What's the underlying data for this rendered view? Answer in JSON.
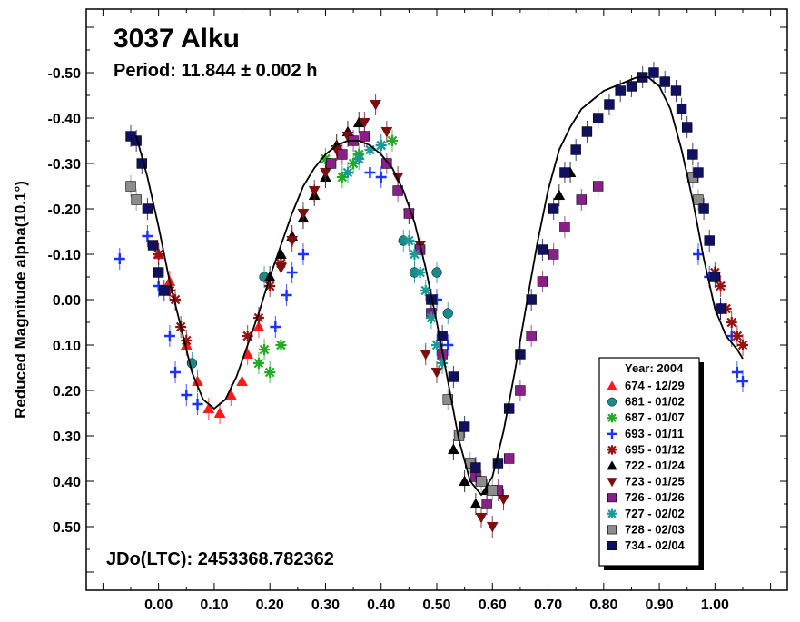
{
  "chart_data": {
    "type": "scatter",
    "title": "3037 Alku",
    "subtitle": "Period: 11.844 ± 0.002 h",
    "epoch_label": "JDo(LTC): 2453368.782362",
    "xlabel": "",
    "ylabel": "Reduced Magnitude alpha(10.1°)",
    "xlim": [
      -0.13,
      1.13
    ],
    "ylim": [
      -0.64,
      0.64
    ],
    "y_inverted": true,
    "x_ticks": [
      {
        "value": 0.0,
        "label": "0.00"
      },
      {
        "value": 0.1,
        "label": "0.10"
      },
      {
        "value": 0.2,
        "label": "0.20"
      },
      {
        "value": 0.3,
        "label": "0.30"
      },
      {
        "value": 0.4,
        "label": "0.40"
      },
      {
        "value": 0.5,
        "label": "0.50"
      },
      {
        "value": 0.6,
        "label": "0.60"
      },
      {
        "value": 0.7,
        "label": "0.70"
      },
      {
        "value": 0.8,
        "label": "0.80"
      },
      {
        "value": 0.9,
        "label": "0.90"
      },
      {
        "value": 1.0,
        "label": "1.00"
      }
    ],
    "y_ticks": [
      {
        "value": -0.5,
        "label": "-0.50"
      },
      {
        "value": -0.4,
        "label": "-0.40"
      },
      {
        "value": -0.3,
        "label": "-0.30"
      },
      {
        "value": -0.2,
        "label": "-0.20"
      },
      {
        "value": -0.1,
        "label": "-0.10"
      },
      {
        "value": 0.0,
        "label": "0.00"
      },
      {
        "value": 0.1,
        "label": "0.10"
      },
      {
        "value": 0.2,
        "label": "0.20"
      },
      {
        "value": 0.3,
        "label": "0.30"
      },
      {
        "value": 0.4,
        "label": "0.40"
      },
      {
        "value": 0.5,
        "label": "0.50"
      }
    ],
    "grid": false,
    "legend": {
      "placement": "bottom-right",
      "title": "Year: 2004",
      "entries": [
        {
          "label": "674 - 12/29",
          "marker": "triangle-up",
          "color": "#ff1a1a"
        },
        {
          "label": "681 - 01/02",
          "marker": "circle",
          "color": "#1a8a8a"
        },
        {
          "label": "687 - 01/07",
          "marker": "asterisk",
          "color": "#22aa22"
        },
        {
          "label": "693 - 01/11",
          "marker": "plus",
          "color": "#1a33ff"
        },
        {
          "label": "695 - 01/12",
          "marker": "asterisk",
          "color": "#991111"
        },
        {
          "label": "722 - 01/24",
          "marker": "triangle-up",
          "color": "#000000"
        },
        {
          "label": "723 - 01/25",
          "marker": "triangle-down",
          "color": "#7a0f0f"
        },
        {
          "label": "726 - 01/26",
          "marker": "square",
          "color": "#8a1f8a"
        },
        {
          "label": "727 - 02/02",
          "marker": "asterisk",
          "color": "#1a9999"
        },
        {
          "label": "728 - 02/03",
          "marker": "square",
          "color": "#8c8c8c"
        },
        {
          "label": "734 - 02/04",
          "marker": "square",
          "color": "#101060"
        }
      ]
    },
    "fit_curve": [
      [
        -0.04,
        -0.36
      ],
      [
        -0.02,
        -0.27
      ],
      [
        0.0,
        -0.16
      ],
      [
        0.02,
        -0.04
      ],
      [
        0.04,
        0.06
      ],
      [
        0.06,
        0.16
      ],
      [
        0.08,
        0.22
      ],
      [
        0.1,
        0.24
      ],
      [
        0.12,
        0.22
      ],
      [
        0.14,
        0.17
      ],
      [
        0.16,
        0.1
      ],
      [
        0.18,
        0.03
      ],
      [
        0.2,
        -0.05
      ],
      [
        0.22,
        -0.12
      ],
      [
        0.24,
        -0.19
      ],
      [
        0.26,
        -0.25
      ],
      [
        0.28,
        -0.29
      ],
      [
        0.3,
        -0.32
      ],
      [
        0.32,
        -0.34
      ],
      [
        0.34,
        -0.35
      ],
      [
        0.36,
        -0.35
      ],
      [
        0.38,
        -0.34
      ],
      [
        0.4,
        -0.32
      ],
      [
        0.42,
        -0.29
      ],
      [
        0.44,
        -0.24
      ],
      [
        0.46,
        -0.17
      ],
      [
        0.48,
        -0.07
      ],
      [
        0.5,
        0.05
      ],
      [
        0.52,
        0.18
      ],
      [
        0.54,
        0.31
      ],
      [
        0.56,
        0.4
      ],
      [
        0.58,
        0.43
      ],
      [
        0.6,
        0.39
      ],
      [
        0.62,
        0.29
      ],
      [
        0.64,
        0.16
      ],
      [
        0.66,
        0.02
      ],
      [
        0.68,
        -0.12
      ],
      [
        0.7,
        -0.24
      ],
      [
        0.72,
        -0.33
      ],
      [
        0.74,
        -0.38
      ],
      [
        0.76,
        -0.42
      ],
      [
        0.78,
        -0.44
      ],
      [
        0.8,
        -0.46
      ],
      [
        0.82,
        -0.47
      ],
      [
        0.84,
        -0.48
      ],
      [
        0.86,
        -0.49
      ],
      [
        0.88,
        -0.49
      ],
      [
        0.9,
        -0.47
      ],
      [
        0.92,
        -0.42
      ],
      [
        0.94,
        -0.33
      ],
      [
        0.96,
        -0.22
      ],
      [
        0.98,
        -0.09
      ],
      [
        1.0,
        0.02
      ],
      [
        1.02,
        0.08
      ],
      [
        1.04,
        0.11
      ],
      [
        1.05,
        0.13
      ]
    ],
    "series": [
      {
        "name": "674 - 12/29",
        "points": [
          [
            0.0,
            -0.1
          ],
          [
            0.02,
            -0.04
          ],
          [
            0.05,
            0.1
          ],
          [
            0.07,
            0.18
          ],
          [
            0.09,
            0.24
          ],
          [
            0.11,
            0.25
          ],
          [
            0.13,
            0.21
          ],
          [
            0.15,
            0.18
          ],
          [
            0.16,
            0.12
          ],
          [
            0.18,
            0.06
          ]
        ]
      },
      {
        "name": "681 - 01/02",
        "points": [
          [
            0.06,
            0.14
          ],
          [
            0.19,
            -0.05
          ],
          [
            0.44,
            -0.13
          ],
          [
            0.46,
            -0.06
          ],
          [
            0.5,
            -0.06
          ],
          [
            0.52,
            0.03
          ]
        ]
      },
      {
        "name": "687 - 01/07",
        "points": [
          [
            0.18,
            0.14
          ],
          [
            0.19,
            0.11
          ],
          [
            0.2,
            0.16
          ],
          [
            0.22,
            0.1
          ],
          [
            0.3,
            -0.31
          ],
          [
            0.33,
            -0.27
          ],
          [
            0.35,
            -0.3
          ],
          [
            0.36,
            -0.32
          ],
          [
            0.4,
            -0.34
          ],
          [
            0.42,
            -0.35
          ]
        ]
      },
      {
        "name": "693 - 01/11",
        "points": [
          [
            -0.07,
            -0.09
          ],
          [
            -0.02,
            -0.14
          ],
          [
            0.0,
            -0.03
          ],
          [
            0.02,
            0.08
          ],
          [
            0.03,
            0.16
          ],
          [
            0.05,
            0.21
          ],
          [
            0.07,
            0.23
          ],
          [
            0.21,
            0.06
          ],
          [
            0.23,
            -0.01
          ],
          [
            0.24,
            -0.06
          ],
          [
            0.26,
            -0.1
          ],
          [
            0.38,
            -0.28
          ],
          [
            0.4,
            -0.27
          ],
          [
            0.5,
            0.0
          ],
          [
            0.52,
            0.1
          ],
          [
            0.97,
            -0.1
          ],
          [
            0.99,
            -0.05
          ],
          [
            1.01,
            0.02
          ],
          [
            1.03,
            0.08
          ],
          [
            1.04,
            0.16
          ],
          [
            1.05,
            0.18
          ]
        ]
      },
      {
        "name": "695 - 01/12",
        "points": [
          [
            0.0,
            -0.1
          ],
          [
            0.02,
            -0.02
          ],
          [
            0.03,
            0.0
          ],
          [
            0.04,
            0.06
          ],
          [
            0.05,
            0.09
          ],
          [
            0.16,
            0.08
          ],
          [
            0.18,
            0.04
          ],
          [
            0.2,
            -0.03
          ],
          [
            0.22,
            -0.08
          ],
          [
            1.0,
            -0.06
          ],
          [
            1.01,
            -0.03
          ],
          [
            1.02,
            0.02
          ],
          [
            1.03,
            0.05
          ],
          [
            1.04,
            0.08
          ],
          [
            1.05,
            0.1
          ]
        ]
      },
      {
        "name": "722 - 01/24",
        "points": [
          [
            0.2,
            -0.05
          ],
          [
            0.22,
            -0.1
          ],
          [
            0.24,
            -0.14
          ],
          [
            0.26,
            -0.18
          ],
          [
            0.28,
            -0.23
          ],
          [
            0.3,
            -0.27
          ],
          [
            0.32,
            -0.34
          ],
          [
            0.34,
            -0.37
          ],
          [
            0.36,
            -0.39
          ],
          [
            0.53,
            0.33
          ],
          [
            0.55,
            0.4
          ],
          [
            0.57,
            0.45
          ],
          [
            0.59,
            0.42
          ],
          [
            0.72,
            -0.23
          ],
          [
            0.74,
            -0.28
          ]
        ]
      },
      {
        "name": "723 - 01/25",
        "points": [
          [
            0.22,
            -0.07
          ],
          [
            0.24,
            -0.13
          ],
          [
            0.26,
            -0.19
          ],
          [
            0.28,
            -0.24
          ],
          [
            0.3,
            -0.28
          ],
          [
            0.32,
            -0.33
          ],
          [
            0.34,
            -0.36
          ],
          [
            0.37,
            -0.39
          ],
          [
            0.39,
            -0.43
          ],
          [
            0.41,
            -0.37
          ],
          [
            0.43,
            -0.27
          ],
          [
            0.45,
            -0.19
          ],
          [
            0.47,
            -0.12
          ],
          [
            0.48,
            0.12
          ],
          [
            0.5,
            0.16
          ],
          [
            0.58,
            0.48
          ],
          [
            0.6,
            0.5
          ],
          [
            0.62,
            0.44
          ]
        ]
      },
      {
        "name": "726 - 01/26",
        "points": [
          [
            0.31,
            -0.3
          ],
          [
            0.33,
            -0.32
          ],
          [
            0.35,
            -0.35
          ],
          [
            0.37,
            -0.36
          ],
          [
            0.41,
            -0.3
          ],
          [
            0.43,
            -0.24
          ],
          [
            0.45,
            -0.19
          ],
          [
            0.47,
            -0.11
          ],
          [
            0.49,
            0.03
          ],
          [
            0.51,
            0.12
          ],
          [
            0.57,
            0.39
          ],
          [
            0.59,
            0.45
          ],
          [
            0.61,
            0.42
          ],
          [
            0.63,
            0.35
          ],
          [
            0.65,
            0.2
          ],
          [
            0.67,
            0.08
          ],
          [
            0.69,
            -0.04
          ],
          [
            0.71,
            -0.1
          ],
          [
            0.73,
            -0.16
          ],
          [
            0.76,
            -0.22
          ],
          [
            0.79,
            -0.25
          ]
        ]
      },
      {
        "name": "727 - 02/02",
        "points": [
          [
            0.34,
            -0.28
          ],
          [
            0.36,
            -0.31
          ],
          [
            0.38,
            -0.33
          ],
          [
            0.4,
            -0.34
          ],
          [
            0.45,
            -0.13
          ],
          [
            0.46,
            -0.1
          ],
          [
            0.47,
            -0.06
          ],
          [
            0.48,
            -0.02
          ],
          [
            0.49,
            0.04
          ],
          [
            0.5,
            0.1
          ],
          [
            0.51,
            0.14
          ]
        ]
      },
      {
        "name": "728 - 02/03",
        "points": [
          [
            -0.05,
            -0.25
          ],
          [
            -0.04,
            -0.22
          ],
          [
            0.52,
            0.22
          ],
          [
            0.54,
            0.3
          ],
          [
            0.56,
            0.36
          ],
          [
            0.58,
            0.4
          ],
          [
            0.6,
            0.42
          ],
          [
            0.96,
            -0.27
          ],
          [
            0.97,
            -0.22
          ]
        ]
      },
      {
        "name": "734 - 02/04",
        "points": [
          [
            -0.05,
            -0.36
          ],
          [
            -0.04,
            -0.35
          ],
          [
            -0.03,
            -0.3
          ],
          [
            -0.02,
            -0.2
          ],
          [
            -0.01,
            -0.12
          ],
          [
            0.0,
            -0.06
          ],
          [
            0.01,
            -0.02
          ],
          [
            0.49,
            0.0
          ],
          [
            0.51,
            0.08
          ],
          [
            0.53,
            0.17
          ],
          [
            0.55,
            0.28
          ],
          [
            0.57,
            0.37
          ],
          [
            0.61,
            0.36
          ],
          [
            0.63,
            0.24
          ],
          [
            0.65,
            0.12
          ],
          [
            0.67,
            0.0
          ],
          [
            0.69,
            -0.11
          ],
          [
            0.71,
            -0.2
          ],
          [
            0.73,
            -0.28
          ],
          [
            0.75,
            -0.33
          ],
          [
            0.77,
            -0.37
          ],
          [
            0.79,
            -0.4
          ],
          [
            0.81,
            -0.43
          ],
          [
            0.83,
            -0.46
          ],
          [
            0.85,
            -0.47
          ],
          [
            0.87,
            -0.49
          ],
          [
            0.89,
            -0.5
          ],
          [
            0.91,
            -0.48
          ],
          [
            0.93,
            -0.46
          ],
          [
            0.94,
            -0.42
          ],
          [
            0.95,
            -0.38
          ],
          [
            0.96,
            -0.32
          ],
          [
            0.97,
            -0.28
          ],
          [
            0.98,
            -0.2
          ],
          [
            0.99,
            -0.13
          ],
          [
            1.0,
            -0.05
          ],
          [
            1.01,
            0.02
          ]
        ]
      }
    ]
  }
}
